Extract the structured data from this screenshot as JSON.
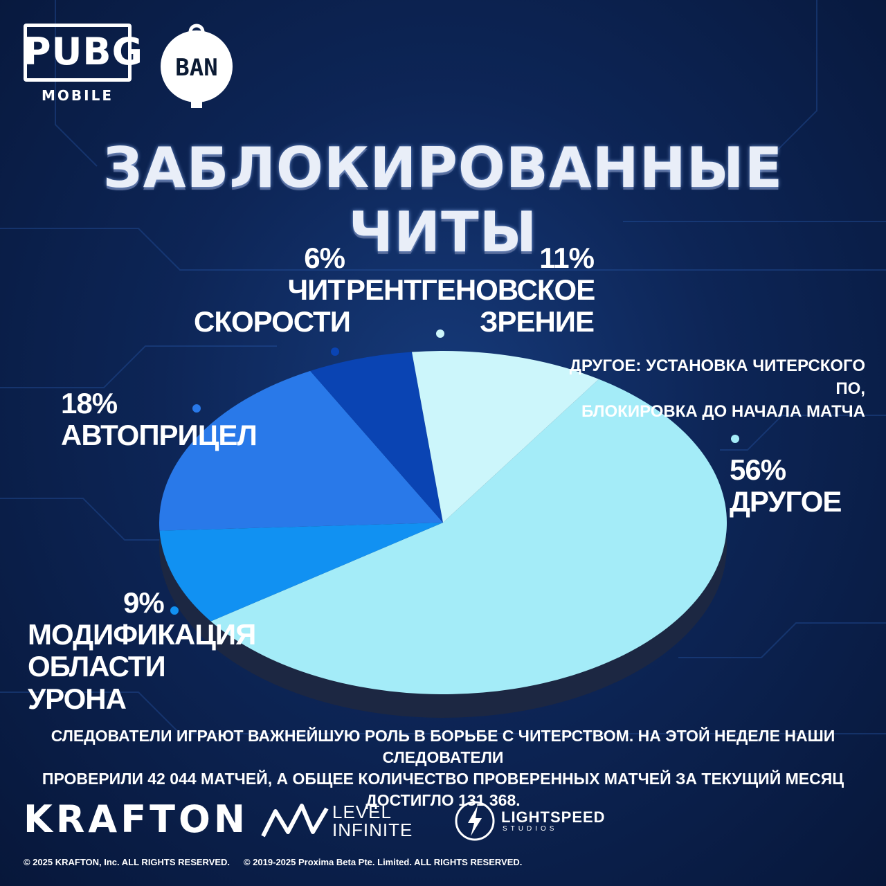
{
  "logos": {
    "pubg_title": "PUBG",
    "pubg_subtitle": "MOBILE",
    "ban_label": "BAN"
  },
  "page_title": "ЗАБЛОКИРОВАННЫЕ ЧИТЫ",
  "chart_data": {
    "type": "pie",
    "title": "ЗАБЛОКИРОВАННЫЕ ЧИТЫ",
    "slices": [
      {
        "label_lines": [
          "ДРУГОЕ"
        ],
        "pct_text": "56%",
        "value": 56,
        "color": "#a4ecf8"
      },
      {
        "label_lines": [
          "МОДИФИКАЦИЯ",
          "ОБЛАСТИ УРОНА"
        ],
        "pct_text": "9%",
        "value": 9,
        "color": "#1191f2"
      },
      {
        "label_lines": [
          "АВТОПРИЦЕЛ"
        ],
        "pct_text": "18%",
        "value": 18,
        "color": "#2979e9"
      },
      {
        "label_lines": [
          "ЧИТ",
          "СКОРОСТИ"
        ],
        "pct_text": "6%",
        "value": 6,
        "color": "#0a44b3"
      },
      {
        "label_lines": [
          "РЕНТГЕНОВСКОЕ",
          "ЗРЕНИЕ"
        ],
        "pct_text": "11%",
        "value": 11,
        "color": "#ccf6fb"
      }
    ],
    "note_lines": [
      "ДРУГОЕ: УСТАНОВКА ЧИТЕРСКОГО ПО,",
      "БЛОКИРОВКА ДО НАЧАЛА МАТЧА"
    ]
  },
  "footer": {
    "lines": [
      "СЛЕДОВАТЕЛИ ИГРАЮТ ВАЖНЕЙШУЮ РОЛЬ В БОРЬБЕ С ЧИТЕРСТВОМ. НА ЭТОЙ НЕДЕЛЕ НАШИ СЛЕДОВАТЕЛИ",
      "ПРОВЕРИЛИ 42 044 МАТЧЕЙ, А ОБЩЕЕ КОЛИЧЕСТВО ПРОВЕРЕННЫХ МАТЧЕЙ ЗА ТЕКУЩИЙ МЕСЯЦ ДОСТИГЛО 131 368."
    ],
    "brands": {
      "krafton": "KRAFTON",
      "level_infinite_top": "LEVEL",
      "level_infinite_bottom": "INFINITE",
      "lightspeed": "LIGHTSPEED",
      "lightspeed_sub": "STUDIOS"
    },
    "copyright_1": "© 2025 KRAFTON, Inc. ALL RIGHTS RESERVED.",
    "copyright_2": "© 2019-2025 Proxima Beta Pte. Limited. ALL RIGHTS RESERVED."
  }
}
